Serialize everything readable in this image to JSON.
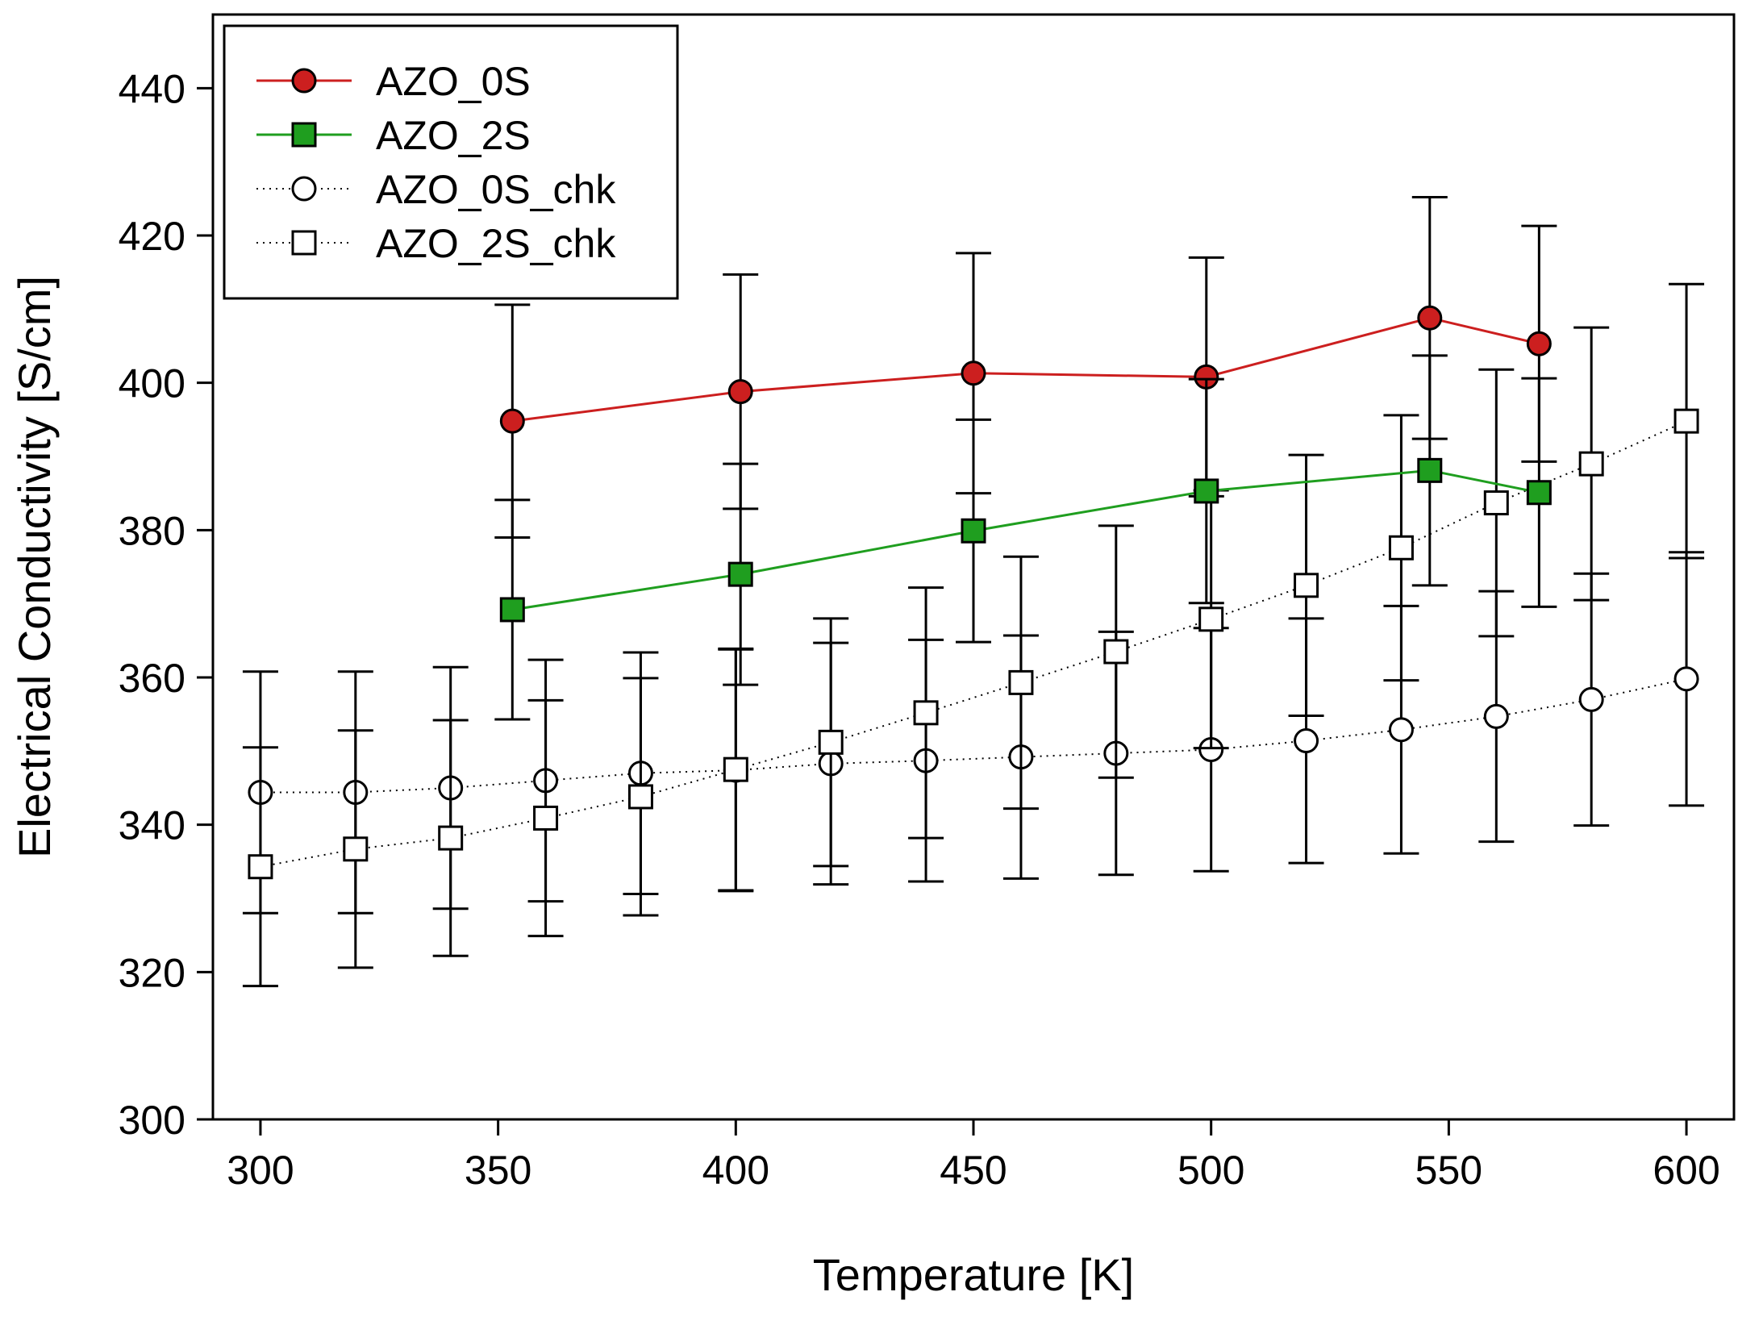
{
  "chart_data": {
    "type": "line",
    "title": "",
    "xlabel": "Temperature [K]",
    "ylabel": "Electrical Conductivity [S/cm]",
    "xlim": [
      290,
      610
    ],
    "ylim": [
      300,
      450
    ],
    "xticks": [
      300,
      350,
      400,
      450,
      500,
      550,
      600
    ],
    "yticks": [
      300,
      320,
      340,
      360,
      380,
      400,
      420,
      440
    ],
    "legend_position": "top-left",
    "series": [
      {
        "name": "AZO_0S",
        "color": "#cc1f1f",
        "marker": "circle",
        "filled": true,
        "line": "solid",
        "x": [
          353,
          401,
          450,
          499,
          546,
          569
        ],
        "y": [
          394.8,
          398.8,
          401.3,
          400.8,
          408.8,
          405.3
        ],
        "err": [
          15.8,
          15.9,
          16.3,
          16.2,
          16.4,
          16.0
        ]
      },
      {
        "name": "AZO_2S",
        "color": "#1f9e1f",
        "marker": "square",
        "filled": true,
        "line": "solid",
        "x": [
          353,
          401,
          450,
          499,
          546,
          569
        ],
        "y": [
          369.2,
          374.0,
          379.9,
          385.3,
          388.1,
          385.1
        ],
        "err": [
          14.9,
          15.0,
          15.1,
          15.2,
          15.6,
          15.5
        ]
      },
      {
        "name": "AZO_0S_chk",
        "color": "#ffffff",
        "marker": "circle",
        "filled": false,
        "line": "dotted",
        "x": [
          300,
          320,
          340,
          360,
          380,
          400,
          420,
          440,
          460,
          480,
          500,
          520,
          540,
          560,
          580,
          600
        ],
        "y": [
          344.4,
          344.4,
          345.0,
          346.0,
          347.0,
          347.4,
          348.3,
          348.7,
          349.2,
          349.7,
          350.2,
          351.4,
          352.9,
          354.7,
          357.0,
          359.8
        ],
        "err": [
          16.4,
          16.4,
          16.4,
          16.4,
          16.4,
          16.4,
          16.4,
          16.4,
          16.5,
          16.5,
          16.5,
          16.6,
          16.8,
          17.0,
          17.1,
          17.2
        ]
      },
      {
        "name": "AZO_2S_chk",
        "color": "#ffffff",
        "marker": "square",
        "filled": false,
        "line": "dotted",
        "x": [
          300,
          320,
          340,
          360,
          380,
          400,
          420,
          440,
          460,
          480,
          500,
          520,
          540,
          560,
          580,
          600
        ],
        "y": [
          334.3,
          336.7,
          338.2,
          340.9,
          343.8,
          347.5,
          351.2,
          355.2,
          359.3,
          363.5,
          367.9,
          372.5,
          377.6,
          383.7,
          389.0,
          394.8
        ],
        "err": [
          16.2,
          16.1,
          16.0,
          16.0,
          16.1,
          16.4,
          16.8,
          17.0,
          17.1,
          17.1,
          17.5,
          17.7,
          18.0,
          18.1,
          18.5,
          18.6
        ]
      }
    ]
  }
}
